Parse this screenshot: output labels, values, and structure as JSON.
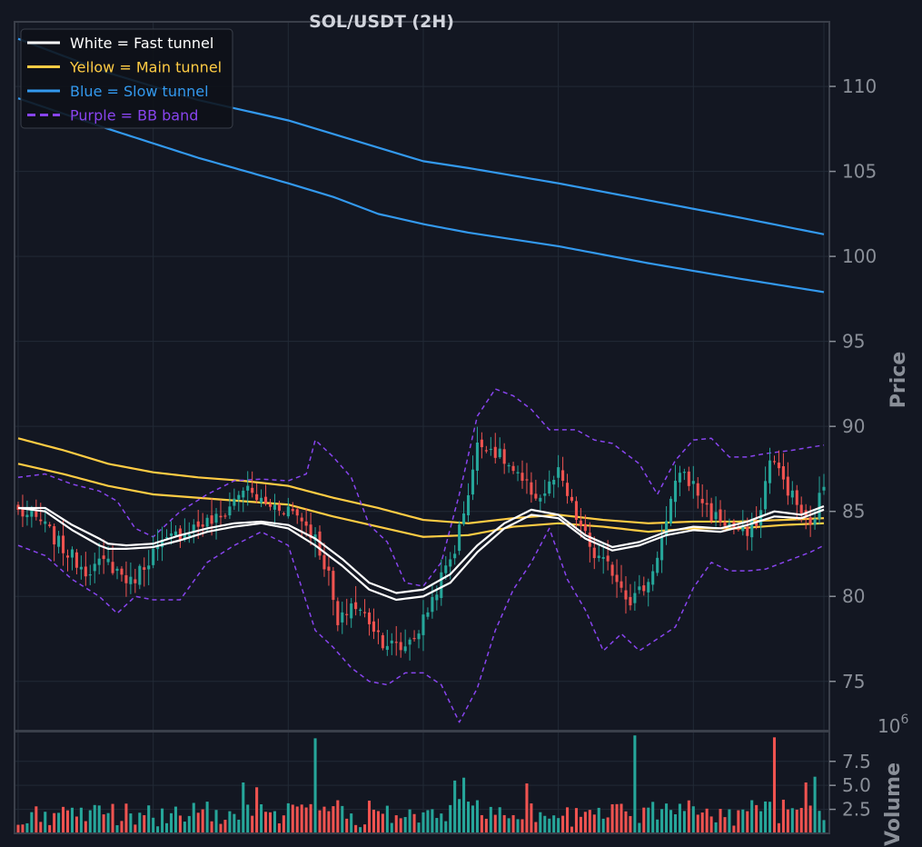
{
  "chart_data": {
    "type": "candlestick",
    "title": "SOL/USDT (2H)",
    "price_axis": {
      "label": "Price",
      "ticks": [
        75,
        80,
        85,
        90,
        95,
        100,
        105,
        110
      ],
      "ylim": [
        72.1,
        113.8
      ]
    },
    "volume_axis": {
      "label": "Volume",
      "exponent": "6",
      "ticks": [
        2.5,
        5.0,
        7.5
      ],
      "tick_labels": [
        "2.5",
        "5.0",
        "7.5"
      ],
      "ylim": [
        0,
        10.6
      ]
    },
    "grid": true,
    "legend": {
      "placement": "top-left",
      "entries": [
        {
          "label": "White = Fast tunnel",
          "color": "#ffffff",
          "style": "solid"
        },
        {
          "label": "Yellow = Main tunnel",
          "color": "#ffcc44",
          "style": "solid"
        },
        {
          "label": "Blue = Slow tunnel",
          "color": "#3399ee",
          "style": "solid"
        },
        {
          "label": "Purple = BB band",
          "color": "#8844ee",
          "style": "dashed"
        }
      ]
    },
    "colors": {
      "up": "#26a69a",
      "down": "#ef5350",
      "background": "#131722",
      "grid": "#222a36",
      "frame": "#3a3f4a",
      "fast": "#ffffff",
      "main": "#ffcc44",
      "slow": "#3399ee",
      "bb": "#8844ee"
    },
    "bar_count": 180,
    "close_anchors": [
      [
        0,
        85.0
      ],
      [
        5,
        84.4
      ],
      [
        10,
        82.8
      ],
      [
        15,
        81.6
      ],
      [
        20,
        82.0
      ],
      [
        25,
        80.8
      ],
      [
        30,
        82.6
      ],
      [
        35,
        83.6
      ],
      [
        40,
        84.2
      ],
      [
        45,
        84.6
      ],
      [
        50,
        86.4
      ],
      [
        55,
        85.4
      ],
      [
        60,
        85.2
      ],
      [
        63,
        84.6
      ],
      [
        66,
        83.4
      ],
      [
        69,
        81.2
      ],
      [
        71,
        78.2
      ],
      [
        74,
        79.6
      ],
      [
        78,
        78.6
      ],
      [
        81,
        77.4
      ],
      [
        85,
        76.9
      ],
      [
        89,
        78.0
      ],
      [
        93,
        80.5
      ],
      [
        97,
        82.8
      ],
      [
        100,
        86.2
      ],
      [
        102,
        88.8
      ],
      [
        104,
        89.0
      ],
      [
        108,
        88.0
      ],
      [
        112,
        86.6
      ],
      [
        116,
        85.8
      ],
      [
        120,
        87.2
      ],
      [
        124,
        84.6
      ],
      [
        128,
        82.4
      ],
      [
        132,
        81.5
      ],
      [
        136,
        79.8
      ],
      [
        140,
        80.8
      ],
      [
        144,
        84.3
      ],
      [
        147,
        87.5
      ],
      [
        150,
        86.5
      ],
      [
        154,
        84.8
      ],
      [
        158,
        84.2
      ],
      [
        162,
        83.6
      ],
      [
        165,
        85.0
      ],
      [
        167,
        88.3
      ],
      [
        170,
        86.8
      ],
      [
        173,
        85.4
      ],
      [
        176,
        84.0
      ],
      [
        179,
        86.6
      ]
    ],
    "fast_tunnel": {
      "upper": [
        [
          0,
          85.2
        ],
        [
          6,
          85.2
        ],
        [
          12,
          84.2
        ],
        [
          18,
          83.4
        ],
        [
          20,
          83.1
        ],
        [
          24,
          83.0
        ],
        [
          30,
          83.1
        ],
        [
          36,
          83.6
        ],
        [
          42,
          84.0
        ],
        [
          48,
          84.3
        ],
        [
          54,
          84.4
        ],
        [
          60,
          84.2
        ],
        [
          66,
          83.4
        ],
        [
          72,
          82.2
        ],
        [
          78,
          80.8
        ],
        [
          84,
          80.2
        ],
        [
          90,
          80.4
        ],
        [
          96,
          81.3
        ],
        [
          102,
          83.0
        ],
        [
          108,
          84.3
        ],
        [
          114,
          85.1
        ],
        [
          120,
          84.8
        ],
        [
          126,
          83.6
        ],
        [
          132,
          82.9
        ],
        [
          138,
          83.2
        ],
        [
          144,
          83.8
        ],
        [
          150,
          84.1
        ],
        [
          156,
          84.0
        ],
        [
          162,
          84.4
        ],
        [
          168,
          85.0
        ],
        [
          174,
          84.8
        ],
        [
          179,
          85.3
        ]
      ],
      "lower": [
        [
          0,
          85.2
        ],
        [
          6,
          85.0
        ],
        [
          12,
          83.9
        ],
        [
          18,
          83.0
        ],
        [
          20,
          82.8
        ],
        [
          24,
          82.8
        ],
        [
          30,
          82.9
        ],
        [
          36,
          83.3
        ],
        [
          42,
          83.8
        ],
        [
          48,
          84.1
        ],
        [
          54,
          84.3
        ],
        [
          60,
          84.0
        ],
        [
          66,
          83.0
        ],
        [
          72,
          81.8
        ],
        [
          78,
          80.4
        ],
        [
          84,
          79.8
        ],
        [
          90,
          80.0
        ],
        [
          96,
          80.8
        ],
        [
          102,
          82.6
        ],
        [
          108,
          84.0
        ],
        [
          114,
          84.8
        ],
        [
          120,
          84.6
        ],
        [
          126,
          83.4
        ],
        [
          132,
          82.7
        ],
        [
          138,
          83.0
        ],
        [
          144,
          83.6
        ],
        [
          150,
          83.9
        ],
        [
          156,
          83.8
        ],
        [
          162,
          84.2
        ],
        [
          168,
          84.7
        ],
        [
          174,
          84.6
        ],
        [
          179,
          85.1
        ]
      ]
    },
    "main_tunnel": {
      "upper": [
        [
          0,
          89.3
        ],
        [
          10,
          88.6
        ],
        [
          20,
          87.8
        ],
        [
          30,
          87.3
        ],
        [
          40,
          87.0
        ],
        [
          50,
          86.8
        ],
        [
          60,
          86.5
        ],
        [
          70,
          85.8
        ],
        [
          80,
          85.2
        ],
        [
          90,
          84.5
        ],
        [
          100,
          84.3
        ],
        [
          110,
          84.6
        ],
        [
          120,
          84.8
        ],
        [
          130,
          84.5
        ],
        [
          140,
          84.3
        ],
        [
          150,
          84.4
        ],
        [
          160,
          84.4
        ],
        [
          170,
          84.5
        ],
        [
          179,
          84.6
        ]
      ],
      "lower": [
        [
          0,
          87.8
        ],
        [
          10,
          87.2
        ],
        [
          20,
          86.5
        ],
        [
          30,
          86.0
        ],
        [
          40,
          85.8
        ],
        [
          50,
          85.6
        ],
        [
          60,
          85.4
        ],
        [
          70,
          84.7
        ],
        [
          80,
          84.1
        ],
        [
          90,
          83.5
        ],
        [
          100,
          83.6
        ],
        [
          110,
          84.1
        ],
        [
          120,
          84.3
        ],
        [
          130,
          84.1
        ],
        [
          140,
          83.8
        ],
        [
          150,
          84.0
        ],
        [
          160,
          84.0
        ],
        [
          170,
          84.2
        ],
        [
          179,
          84.3
        ]
      ]
    },
    "slow_tunnel": {
      "upper": [
        [
          0,
          112.8
        ],
        [
          20,
          110.8
        ],
        [
          40,
          109.2
        ],
        [
          60,
          108.0
        ],
        [
          80,
          106.4
        ],
        [
          90,
          105.6
        ],
        [
          100,
          105.2
        ],
        [
          120,
          104.3
        ],
        [
          140,
          103.3
        ],
        [
          160,
          102.3
        ],
        [
          179,
          101.3
        ]
      ],
      "lower": [
        [
          0,
          109.3
        ],
        [
          20,
          107.5
        ],
        [
          40,
          105.8
        ],
        [
          60,
          104.3
        ],
        [
          70,
          103.5
        ],
        [
          80,
          102.5
        ],
        [
          90,
          101.9
        ],
        [
          100,
          101.4
        ],
        [
          120,
          100.6
        ],
        [
          140,
          99.6
        ],
        [
          160,
          98.7
        ],
        [
          179,
          97.9
        ]
      ]
    },
    "bb_band": {
      "upper": [
        [
          0,
          87.0
        ],
        [
          6,
          87.2
        ],
        [
          12,
          86.6
        ],
        [
          18,
          86.2
        ],
        [
          22,
          85.6
        ],
        [
          26,
          84.0
        ],
        [
          30,
          83.5
        ],
        [
          36,
          85.0
        ],
        [
          42,
          86.0
        ],
        [
          48,
          86.8
        ],
        [
          54,
          86.9
        ],
        [
          60,
          86.8
        ],
        [
          64,
          87.2
        ],
        [
          66,
          89.2
        ],
        [
          70,
          88.2
        ],
        [
          74,
          87.0
        ],
        [
          78,
          84.2
        ],
        [
          82,
          83.2
        ],
        [
          86,
          80.8
        ],
        [
          90,
          80.6
        ],
        [
          94,
          82.0
        ],
        [
          98,
          86.0
        ],
        [
          102,
          90.6
        ],
        [
          106,
          92.2
        ],
        [
          110,
          91.8
        ],
        [
          114,
          91.0
        ],
        [
          118,
          89.8
        ],
        [
          124,
          89.8
        ],
        [
          128,
          89.2
        ],
        [
          132,
          89.0
        ],
        [
          138,
          87.8
        ],
        [
          142,
          86.0
        ],
        [
          146,
          88.0
        ],
        [
          150,
          89.2
        ],
        [
          154,
          89.3
        ],
        [
          158,
          88.2
        ],
        [
          162,
          88.2
        ],
        [
          166,
          88.4
        ],
        [
          172,
          88.6
        ],
        [
          179,
          88.9
        ]
      ],
      "lower": [
        [
          0,
          83.0
        ],
        [
          6,
          82.4
        ],
        [
          12,
          81.0
        ],
        [
          18,
          80.0
        ],
        [
          22,
          79.0
        ],
        [
          26,
          80.0
        ],
        [
          30,
          79.8
        ],
        [
          36,
          79.8
        ],
        [
          42,
          82.0
        ],
        [
          48,
          83.0
        ],
        [
          54,
          83.8
        ],
        [
          60,
          83.0
        ],
        [
          66,
          78.0
        ],
        [
          70,
          77.0
        ],
        [
          74,
          75.8
        ],
        [
          78,
          75.0
        ],
        [
          82,
          74.8
        ],
        [
          86,
          75.5
        ],
        [
          90,
          75.5
        ],
        [
          94,
          74.8
        ],
        [
          98,
          72.6
        ],
        [
          102,
          74.6
        ],
        [
          106,
          78.0
        ],
        [
          110,
          80.4
        ],
        [
          114,
          82.0
        ],
        [
          118,
          84.0
        ],
        [
          122,
          81.0
        ],
        [
          126,
          79.2
        ],
        [
          130,
          76.8
        ],
        [
          134,
          77.8
        ],
        [
          138,
          76.8
        ],
        [
          142,
          77.5
        ],
        [
          146,
          78.2
        ],
        [
          150,
          80.5
        ],
        [
          154,
          82.0
        ],
        [
          158,
          81.5
        ],
        [
          162,
          81.5
        ],
        [
          166,
          81.6
        ],
        [
          170,
          82.0
        ],
        [
          176,
          82.6
        ],
        [
          179,
          83.0
        ]
      ]
    },
    "volume_spikes": [
      [
        50,
        5.3
      ],
      [
        53,
        4.8
      ],
      [
        66,
        9.9
      ],
      [
        97,
        5.5
      ],
      [
        99,
        5.8
      ],
      [
        113,
        5.2
      ],
      [
        137,
        10.2
      ],
      [
        168,
        10.0
      ],
      [
        175,
        5.3
      ],
      [
        177,
        5.9
      ]
    ]
  }
}
